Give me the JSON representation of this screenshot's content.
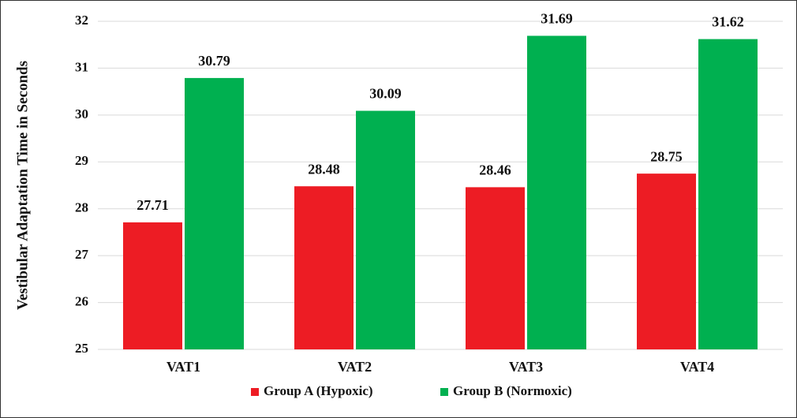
{
  "chart_data": {
    "type": "bar",
    "y_label": "Vestibular Adaptation Time in Seconds",
    "categories": [
      "VAT1",
      "VAT2",
      "VAT3",
      "VAT4"
    ],
    "series": [
      {
        "name": "Group A (Hypoxic)",
        "color": "#ed1c24",
        "values": [
          27.71,
          28.48,
          28.46,
          28.75
        ]
      },
      {
        "name": "Group B (Normoxic)",
        "color": "#00b050",
        "values": [
          30.79,
          30.09,
          31.69,
          31.62
        ]
      }
    ],
    "ylim": [
      25,
      32
    ],
    "yticks": [
      25,
      26,
      27,
      28,
      29,
      30,
      31,
      32
    ],
    "grid": true,
    "legend": "bottom"
  }
}
